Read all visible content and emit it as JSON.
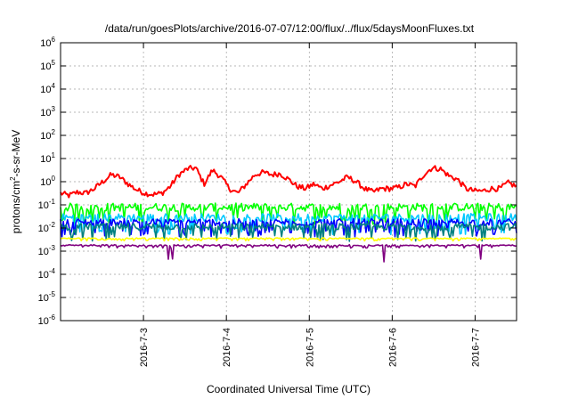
{
  "chart_data": {
    "type": "line",
    "title": "/data/run/goesPlots/archive/2016-07-07/12:00/flux/../flux/5daysMoonFluxes.txt",
    "xlabel": "Coordinated Universal Time (UTC)",
    "ylabel": "protons/cm2-s-sr-MeV",
    "ylabel_parts": {
      "prefix": "protons/cm",
      "sup": "2",
      "suffix": "-s-sr-MeV"
    },
    "y_scale": "log",
    "ylim": [
      1e-06,
      1000000.0
    ],
    "y_ticks": [
      {
        "exp": "-6"
      },
      {
        "exp": "-5"
      },
      {
        "exp": "-4"
      },
      {
        "exp": "-3"
      },
      {
        "exp": "-2"
      },
      {
        "exp": "-1"
      },
      {
        "exp": "0"
      },
      {
        "exp": "1"
      },
      {
        "exp": "2"
      },
      {
        "exp": "3"
      },
      {
        "exp": "4"
      },
      {
        "exp": "5"
      },
      {
        "exp": "6"
      }
    ],
    "y_tick_base": "10",
    "xlim": [
      "2016-07-02 00:00",
      "2016-07-07 12:00"
    ],
    "x_ticks": [
      "2016-7-3",
      "2016-7-4",
      "2016-7-5",
      "2016-7-6",
      "2016-7-7"
    ],
    "grid": true,
    "legend": "none",
    "series": [
      {
        "color": "#ff0000",
        "base_log10": [
          -0.5,
          -0.6,
          -0.45,
          -0.5,
          -0.3,
          0.0,
          0.3,
          0.2,
          -0.1,
          -0.35,
          -0.5,
          -0.55,
          -0.5,
          -0.2,
          0.3,
          0.55,
          0.6,
          -0.1,
          0.5,
          0.2,
          -0.3,
          -0.5,
          -0.1,
          0.3,
          0.4,
          0.3,
          0.35,
          0.1,
          -0.2,
          -0.3,
          -0.1,
          -0.3,
          -0.15,
          0.0,
          0.2,
          0.0,
          -0.3,
          -0.45,
          -0.3,
          -0.3,
          -0.25,
          -0.1,
          -0.2,
          0.3,
          0.6,
          0.55,
          0.25,
          0.1,
          -0.3,
          -0.4,
          -0.4,
          -0.3,
          -0.3,
          -0.05,
          -0.2
        ],
        "noise": 0.12
      },
      {
        "color": "#00ff00",
        "level_log10": -1.1,
        "noise": 0.35
      },
      {
        "color": "#00c8ff",
        "level_log10": -1.55,
        "noise": 0.35
      },
      {
        "color": "#0000ff",
        "level_log10": -1.75,
        "noise": 0.3
      },
      {
        "color": "#008080",
        "level_log10": -1.95,
        "noise": 0.3
      },
      {
        "color": "#ffff00",
        "level_log10": -2.45,
        "noise": 0.05
      },
      {
        "color": "#800080",
        "level_log10": -2.75,
        "noise": 0.06
      }
    ]
  }
}
